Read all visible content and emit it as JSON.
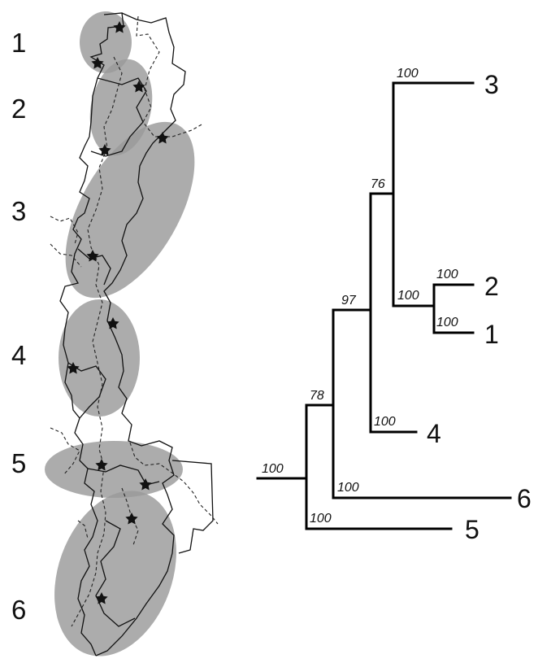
{
  "map": {
    "regions": [
      {
        "label": "1"
      },
      {
        "label": "2"
      },
      {
        "label": "3"
      },
      {
        "label": "4"
      },
      {
        "label": "5"
      },
      {
        "label": "6"
      }
    ],
    "cluster_color": "#9a9a9a",
    "star_icon": "star-icon"
  },
  "tree": {
    "root_support": "100",
    "tips": {
      "t3": "3",
      "t2": "2",
      "t1": "1",
      "t4": "4",
      "t6": "6",
      "t5": "5"
    },
    "supports": {
      "clade_34_12": "78",
      "clade_3_4_12": "97",
      "clade_3_12": "76",
      "branch_3": "100",
      "clade_12": "100",
      "branch_2": "100",
      "branch_1": "100",
      "branch_4": "100",
      "branch_6": "100",
      "branch_5": "100"
    }
  }
}
